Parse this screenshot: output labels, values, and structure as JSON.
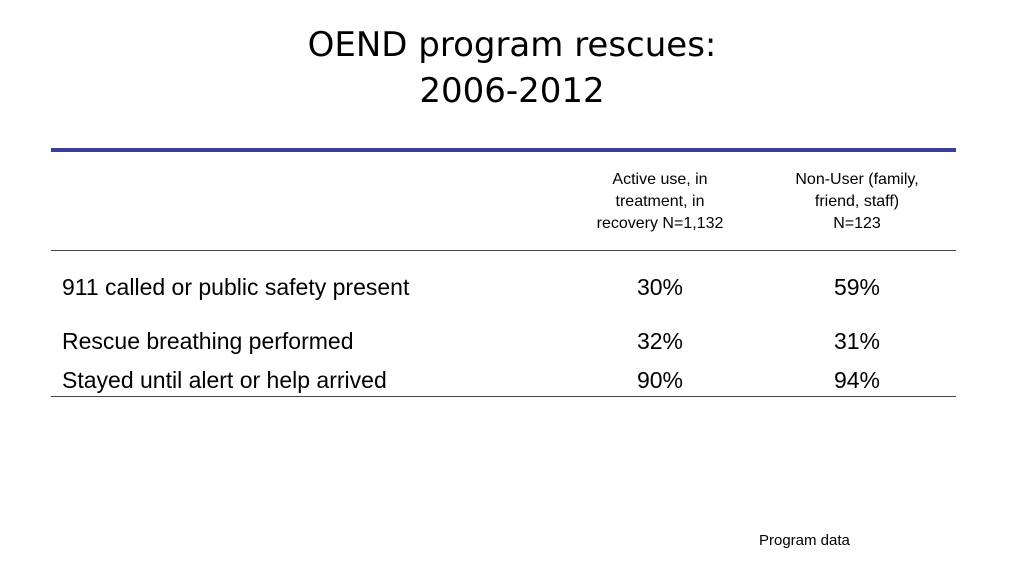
{
  "slide": {
    "title_line1": "OEND program rescues:",
    "title_line2": "2006-2012",
    "footnote": "Program data"
  },
  "table": {
    "columns": [
      {
        "lines": [
          "Active use, in",
          "treatment, in",
          "recovery N=1,132"
        ]
      },
      {
        "lines": [
          "Non-User (family,",
          "friend, staff)",
          "N=123"
        ]
      }
    ],
    "rows": [
      {
        "label": "911 called or public safety present",
        "values": [
          "30%",
          "59%"
        ]
      },
      {
        "label": "Rescue breathing performed",
        "values": [
          "32%",
          "31%"
        ]
      },
      {
        "label": "Stayed until alert or help arrived",
        "values": [
          "90%",
          "94%"
        ]
      }
    ]
  },
  "colors": {
    "accent_rule": "#3b3f99"
  }
}
